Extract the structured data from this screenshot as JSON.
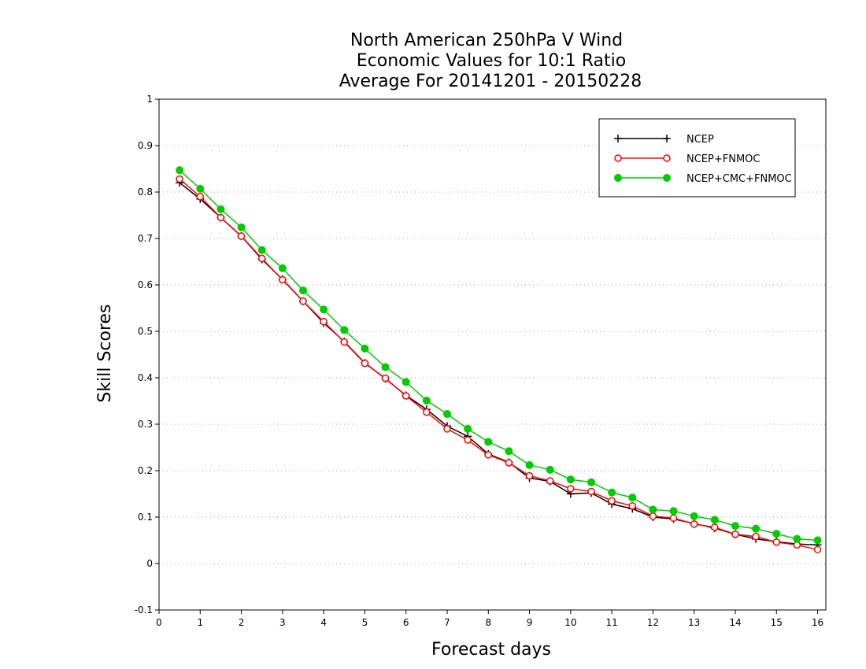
{
  "chart_data": {
    "type": "line",
    "title_lines": [
      "North American 250hPa V Wind",
      "Economic Values for 10:1 Ratio",
      "Average For 20141201 - 20150228"
    ],
    "xlabel": "Forecast days",
    "ylabel": "Skill Scores",
    "xlim": [
      0,
      16.2
    ],
    "ylim": [
      -0.1,
      1
    ],
    "xticks": [
      "0",
      "1",
      "2",
      "3",
      "4",
      "5",
      "6",
      "7",
      "8",
      "9",
      "10",
      "11",
      "12",
      "13",
      "14",
      "15",
      "16"
    ],
    "yticks": [
      "-0.1",
      "0",
      "0.1",
      "0.2",
      "0.3",
      "0.4",
      "0.5",
      "0.6",
      "0.7",
      "0.8",
      "0.9",
      "1"
    ],
    "grid": "horizontal dotted",
    "legend_position": "top-right",
    "x": [
      0.5,
      1,
      1.5,
      2,
      2.5,
      3,
      3.5,
      4,
      4.5,
      5,
      5.5,
      6,
      6.5,
      7,
      7.5,
      8,
      8.5,
      9,
      9.5,
      10,
      10.5,
      11,
      11.5,
      12,
      12.5,
      13,
      13.5,
      14,
      14.5,
      15,
      15.5,
      16
    ],
    "series": [
      {
        "name": "NCEP",
        "color": "#000000",
        "marker": "plus",
        "values": [
          0.82,
          0.785,
          0.745,
          0.705,
          0.655,
          0.612,
          0.565,
          0.518,
          0.478,
          0.432,
          0.398,
          0.362,
          0.332,
          0.296,
          0.274,
          0.236,
          0.218,
          0.184,
          0.177,
          0.15,
          0.152,
          0.128,
          0.118,
          0.1,
          0.096,
          0.086,
          0.076,
          0.063,
          0.053,
          0.047,
          0.042,
          0.04
        ]
      },
      {
        "name": "NCEP+FNMOC",
        "color": "#ff0000",
        "marker": "open-circle",
        "values": [
          0.828,
          0.79,
          0.745,
          0.705,
          0.657,
          0.611,
          0.565,
          0.521,
          0.477,
          0.431,
          0.399,
          0.361,
          0.326,
          0.29,
          0.266,
          0.234,
          0.217,
          0.189,
          0.178,
          0.161,
          0.155,
          0.135,
          0.124,
          0.102,
          0.098,
          0.085,
          0.078,
          0.063,
          0.058,
          0.046,
          0.04,
          0.03
        ]
      },
      {
        "name": "NCEP+CMC+FNMOC",
        "color": "#00cc00",
        "marker": "filled-circle",
        "values": [
          0.847,
          0.807,
          0.763,
          0.724,
          0.675,
          0.636,
          0.588,
          0.547,
          0.503,
          0.463,
          0.423,
          0.391,
          0.351,
          0.322,
          0.29,
          0.262,
          0.242,
          0.212,
          0.202,
          0.181,
          0.175,
          0.153,
          0.142,
          0.116,
          0.113,
          0.102,
          0.094,
          0.081,
          0.075,
          0.064,
          0.053,
          0.05
        ]
      }
    ]
  }
}
